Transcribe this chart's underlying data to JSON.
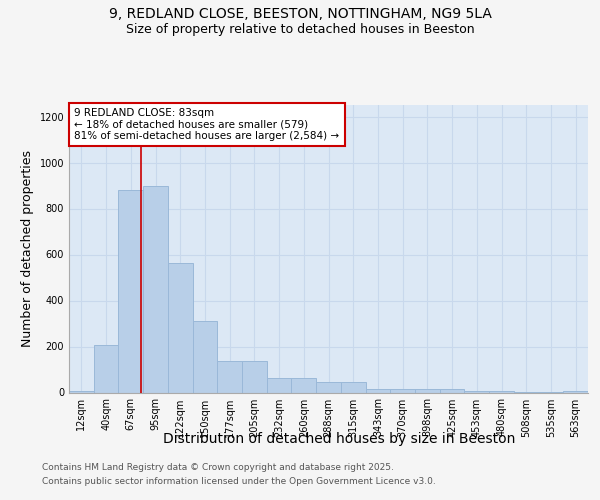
{
  "title_line1": "9, REDLAND CLOSE, BEESTON, NOTTINGHAM, NG9 5LA",
  "title_line2": "Size of property relative to detached houses in Beeston",
  "xlabel": "Distribution of detached houses by size in Beeston",
  "ylabel": "Number of detached properties",
  "categories": [
    "12sqm",
    "40sqm",
    "67sqm",
    "95sqm",
    "122sqm",
    "150sqm",
    "177sqm",
    "205sqm",
    "232sqm",
    "260sqm",
    "288sqm",
    "315sqm",
    "343sqm",
    "370sqm",
    "398sqm",
    "425sqm",
    "453sqm",
    "480sqm",
    "508sqm",
    "535sqm",
    "563sqm"
  ],
  "values": [
    5,
    205,
    880,
    900,
    565,
    310,
    135,
    135,
    65,
    65,
    45,
    45,
    15,
    15,
    15,
    15,
    8,
    8,
    2,
    2,
    8
  ],
  "bar_color": "#b8cfe8",
  "bar_edge_color": "#9ab8d8",
  "annotation_box_color": "#ffffff",
  "annotation_box_edge": "#cc0000",
  "vertical_line_color": "#cc0000",
  "ylim": [
    0,
    1250
  ],
  "yticks": [
    0,
    200,
    400,
    600,
    800,
    1000,
    1200
  ],
  "grid_color": "#c8d8ec",
  "background_color": "#dce8f5",
  "fig_background": "#f5f5f5",
  "title_fontsize": 10,
  "subtitle_fontsize": 9,
  "axis_label_fontsize": 9,
  "tick_fontsize": 7,
  "annotation_fontsize": 7.5,
  "footer_fontsize": 6.5,
  "annotation_text_line1": "9 REDLAND CLOSE: 83sqm",
  "annotation_text_line2": "← 18% of detached houses are smaller (579)",
  "annotation_text_line3": "81% of semi-detached houses are larger (2,584) →",
  "footer_line1": "Contains HM Land Registry data © Crown copyright and database right 2025.",
  "footer_line2": "Contains public sector information licensed under the Open Government Licence v3.0.",
  "vertical_line_x": 2.42
}
